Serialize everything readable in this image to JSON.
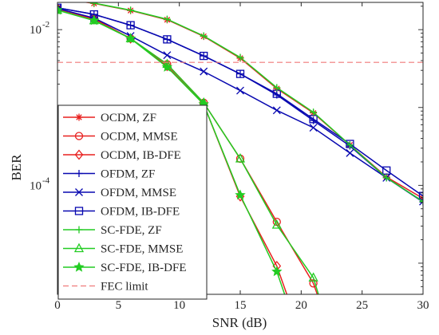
{
  "chart_data": {
    "type": "line",
    "title": "",
    "xlabel": "SNR (dB)",
    "ylabel": "BER",
    "xlim": [
      0,
      30
    ],
    "ylim_log10": [
      -5.4,
      -1.65
    ],
    "y_scale": "log",
    "x_ticks": [
      "0",
      "5",
      "10",
      "15",
      "20",
      "25",
      "30"
    ],
    "y_ticks": [
      {
        "base": "10",
        "exp": "-2",
        "value": 0.01
      },
      {
        "base": "10",
        "exp": "-4",
        "value": 0.0001
      }
    ],
    "legend_position": "bottom-left",
    "series": [
      {
        "name": "OCDM, ZF",
        "color": "#e8201f",
        "marker": "asterisk",
        "x": [
          0,
          3,
          6,
          9,
          12,
          15,
          18,
          21,
          24,
          27,
          30
        ],
        "y": [
          0.0255,
          0.0217,
          0.0176,
          0.0134,
          0.0082,
          0.0043,
          0.00175,
          0.00085,
          0.00033,
          0.000128,
          6.8e-05
        ]
      },
      {
        "name": "OCDM, MMSE",
        "color": "#e8201f",
        "marker": "circle",
        "x": [
          0,
          3,
          6,
          9,
          12,
          15,
          18,
          21,
          22
        ],
        "y": [
          0.0185,
          0.0138,
          0.0077,
          0.0036,
          0.00115,
          0.00022,
          3.4e-05,
          5.5e-06,
          2e-06
        ]
      },
      {
        "name": "OCDM, IB-DFE",
        "color": "#e8201f",
        "marker": "diamond",
        "x": [
          0,
          3,
          6,
          9,
          12,
          15,
          18,
          19.5
        ],
        "y": [
          0.0185,
          0.0136,
          0.0077,
          0.0034,
          0.0011,
          7.2e-05,
          9.2e-06,
          2e-06
        ]
      },
      {
        "name": "OFDM, ZF",
        "color": "#0808b0",
        "marker": "plus",
        "x": [
          0,
          3,
          6,
          9,
          12,
          15,
          18,
          21,
          24,
          27,
          30
        ],
        "y": [
          0.0191,
          0.0157,
          0.0114,
          0.0075,
          0.0046,
          0.0027,
          0.00145,
          0.00068,
          0.00032,
          0.000125,
          6.1e-05
        ]
      },
      {
        "name": "OFDM, MMSE",
        "color": "#0808b0",
        "marker": "x",
        "x": [
          0,
          3,
          6,
          9,
          12,
          15,
          18,
          21,
          24,
          27,
          30
        ],
        "y": [
          0.0187,
          0.0141,
          0.0083,
          0.0047,
          0.0029,
          0.00165,
          0.00092,
          0.00055,
          0.00026,
          0.000125,
          6.2e-05
        ]
      },
      {
        "name": "OFDM, IB-DFE",
        "color": "#0808b0",
        "marker": "square",
        "x": [
          0,
          3,
          6,
          9,
          12,
          15,
          18,
          21,
          24,
          27,
          30
        ],
        "y": [
          0.0191,
          0.0157,
          0.0114,
          0.0075,
          0.0046,
          0.0027,
          0.0015,
          0.00071,
          0.00034,
          0.000155,
          7.3e-05
        ]
      },
      {
        "name": "SC-FDE, ZF",
        "color": "#22cc22",
        "marker": "plus",
        "x": [
          0,
          3,
          6,
          9,
          12,
          15,
          18,
          21,
          24,
          27,
          30
        ],
        "y": [
          0.0258,
          0.0219,
          0.0178,
          0.0136,
          0.0083,
          0.0044,
          0.0018,
          0.00087,
          0.00033,
          0.000125,
          6.2e-05
        ]
      },
      {
        "name": "SC-FDE, MMSE",
        "color": "#22cc22",
        "marker": "triangle",
        "x": [
          0,
          3,
          6,
          9,
          12,
          15,
          18,
          21,
          22
        ],
        "y": [
          0.0178,
          0.0131,
          0.0077,
          0.0036,
          0.00115,
          0.00022,
          3.1e-05,
          6.5e-06,
          2e-06
        ]
      },
      {
        "name": "SC-FDE, IB-DFE",
        "color": "#22cc22",
        "marker": "star",
        "x": [
          0,
          3,
          6,
          9,
          12,
          15,
          18,
          19.3
        ],
        "y": [
          0.0178,
          0.0131,
          0.0077,
          0.0033,
          0.0011,
          7.5e-05,
          7.8e-06,
          2e-06
        ]
      },
      {
        "name": "FEC limit",
        "color": "#f07a7a",
        "marker": "none",
        "dashed": true,
        "x": [
          0,
          30
        ],
        "y": [
          0.0038,
          0.0038
        ]
      }
    ]
  }
}
